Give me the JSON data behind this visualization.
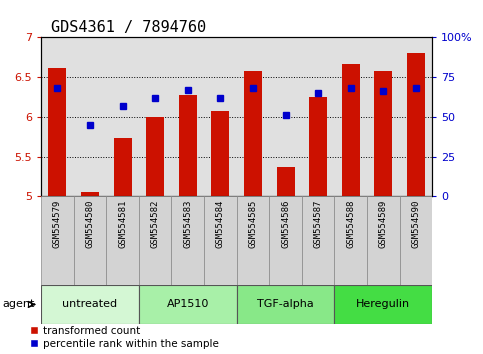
{
  "title": "GDS4361 / 7894760",
  "samples": [
    "GSM554579",
    "GSM554580",
    "GSM554581",
    "GSM554582",
    "GSM554583",
    "GSM554584",
    "GSM554585",
    "GSM554586",
    "GSM554587",
    "GSM554588",
    "GSM554589",
    "GSM554590"
  ],
  "red_values": [
    6.61,
    5.05,
    5.73,
    6.0,
    6.28,
    6.07,
    6.57,
    5.37,
    6.25,
    6.66,
    6.57,
    6.8
  ],
  "blue_values": [
    68,
    45,
    57,
    62,
    67,
    62,
    68,
    51,
    65,
    68,
    66,
    68
  ],
  "ylim_left": [
    5.0,
    7.0
  ],
  "ylim_right": [
    0,
    100
  ],
  "yticks_left": [
    5.0,
    5.5,
    6.0,
    6.5,
    7.0
  ],
  "ytick_labels_left": [
    "5",
    "5.5",
    "6",
    "6.5",
    "7"
  ],
  "yticks_right": [
    0,
    25,
    50,
    75,
    100
  ],
  "ytick_labels_right": [
    "0",
    "25",
    "50",
    "75",
    "100%"
  ],
  "groups": [
    {
      "label": "untreated",
      "start": 0,
      "end": 3,
      "color": "#d4f7d4"
    },
    {
      "label": "AP1510",
      "start": 3,
      "end": 6,
      "color": "#a8f0a8"
    },
    {
      "label": "TGF-alpha",
      "start": 6,
      "end": 9,
      "color": "#88e888"
    },
    {
      "label": "Heregulin",
      "start": 9,
      "end": 12,
      "color": "#44dd44"
    }
  ],
  "bar_color": "#cc1100",
  "dot_color": "#0000cc",
  "bar_width": 0.55,
  "background_plot": "#e0e0e0",
  "legend_red": "transformed count",
  "legend_blue": "percentile rank within the sample",
  "agent_label": "agent",
  "title_fontsize": 11,
  "tick_fontsize": 8,
  "label_fontsize": 6.5,
  "group_fontsize": 8
}
